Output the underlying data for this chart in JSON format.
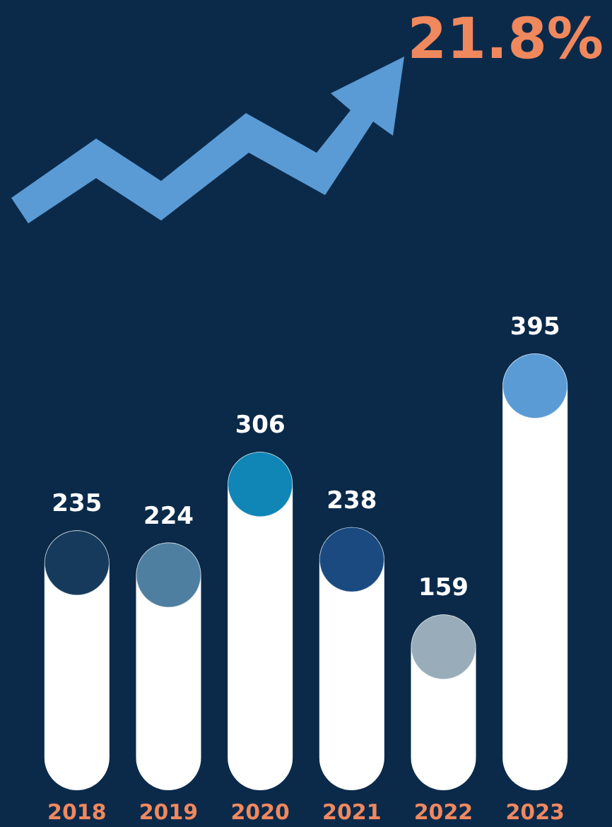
{
  "chart_data": {
    "type": "bar",
    "categories": [
      "2018",
      "2019",
      "2020",
      "2021",
      "2022",
      "2023"
    ],
    "values": [
      235,
      224,
      306,
      238,
      159,
      395
    ],
    "colors": [
      "#153a5c",
      "#4f7fa0",
      "#0f86b6",
      "#1a4a80",
      "#98adb9",
      "#5b9bd5"
    ],
    "data_labels": true,
    "annotations": [
      "21.8%"
    ]
  }
}
